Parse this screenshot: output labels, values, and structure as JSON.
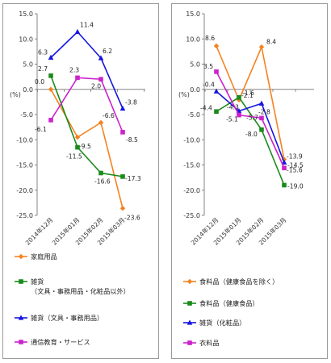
{
  "chart_data": [
    {
      "type": "line",
      "ylabel": "(%)",
      "ylim": [
        -25,
        15
      ],
      "yticks": [
        "15.0",
        "10.0",
        "5.0",
        "0.0",
        "-5.0",
        "-10.0",
        "-15.0",
        "-20.0",
        "-25.0"
      ],
      "categories": [
        "2014年12月",
        "2015年01月",
        "2015年02月",
        "2015年03月"
      ],
      "legend_position": "bottom",
      "series": [
        {
          "name": "家庭用品",
          "color": "#F58220",
          "values": [
            0.0,
            -9.5,
            -6.6,
            -23.6
          ],
          "labels": [
            "0.0",
            "-9.5",
            "-6.6",
            "-23.6"
          ]
        },
        {
          "name": "雑貨\n（文具・事務用品・化粧品以外）",
          "color": "#1A8A1A",
          "values": [
            2.7,
            -11.5,
            -16.6,
            -17.3
          ],
          "labels": [
            "2.7",
            "-11.5",
            "-16.6",
            "-17.3"
          ]
        },
        {
          "name": "雑貨（文具・事務用品）",
          "color": "#1515E0",
          "values": [
            6.3,
            11.4,
            6.2,
            -3.8
          ],
          "labels": [
            "6.3",
            "11.4",
            "6.2",
            "-3.8"
          ]
        },
        {
          "name": "通信教育・サービス",
          "color": "#CC22CC",
          "values": [
            -6.1,
            2.3,
            2.0,
            -8.5
          ],
          "labels": [
            "-6.1",
            "2.3",
            "2.0",
            "-8.5"
          ]
        }
      ]
    },
    {
      "type": "line",
      "ylabel": "(%)",
      "ylim": [
        -25,
        15
      ],
      "yticks": [
        "15.0",
        "10.0",
        "5.0",
        "0.0",
        "-5.0",
        "-10.0",
        "-15.0",
        "-20.0",
        "-25.0"
      ],
      "categories": [
        "2014年12月",
        "2015年01月",
        "2015年02月",
        "2015年03月"
      ],
      "legend_position": "bottom",
      "series": [
        {
          "name": "食料品（健康食品を除く）",
          "color": "#F58220",
          "values": [
            8.6,
            -2.1,
            8.4,
            -13.9
          ],
          "labels": [
            "8.6",
            "-2.1",
            "8.4",
            "-13.9"
          ]
        },
        {
          "name": "食料品（健康食品）",
          "color": "#1A8A1A",
          "values": [
            -4.4,
            -1.6,
            -8.0,
            -19.0
          ],
          "labels": [
            "-4.4",
            "-1.6",
            "-8.0",
            "-19.0"
          ]
        },
        {
          "name": "雑貨（化粧品）",
          "color": "#1515E0",
          "values": [
            -0.4,
            -4.3,
            -2.8,
            -14.5
          ],
          "labels": [
            "-0.4",
            "-4.3",
            "-2.8",
            "-14.5"
          ]
        },
        {
          "name": "衣料品",
          "color": "#CC22CC",
          "values": [
            3.5,
            -5.1,
            -5.7,
            -15.6
          ],
          "labels": [
            "3.5",
            "-5.1",
            "-5.7",
            "-15.6"
          ]
        }
      ]
    }
  ]
}
